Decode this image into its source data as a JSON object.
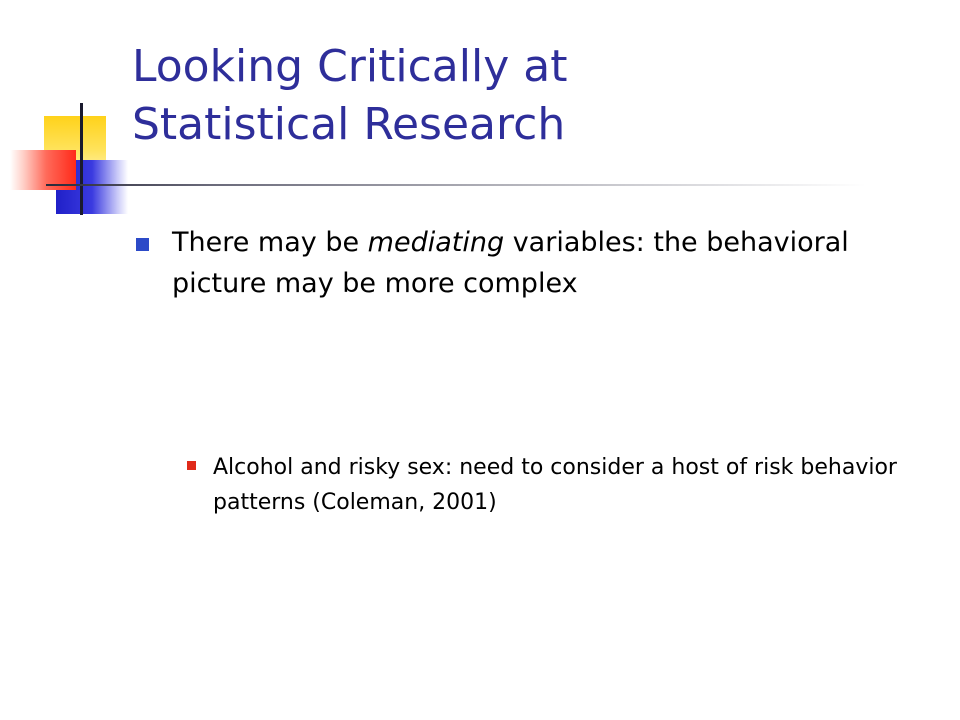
{
  "slide": {
    "title": {
      "line1": "Looking Critically at",
      "line2": "Statistical Research"
    },
    "bullets": [
      {
        "prefix": "There may be ",
        "emphasis": "mediating",
        "suffix": " variables: the behavioral picture may be more complex"
      }
    ],
    "sub_bullets": [
      {
        "text": "Alcohol and risky sex: need to consider a host of risk behavior patterns (Coleman, 2001)"
      }
    ]
  },
  "colors": {
    "title": "#2e2e9a",
    "bullet_marker": "#2c4ac8",
    "sub_bullet_marker": "#e02a1a",
    "accent_yellow": "#ffd21a",
    "accent_blue": "#2020c8",
    "accent_red": "#ff2a1a"
  }
}
